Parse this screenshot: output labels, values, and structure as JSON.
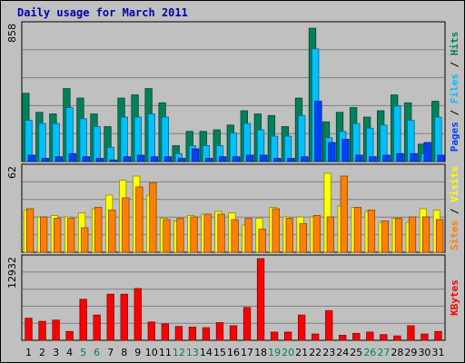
{
  "title": "Daily usage for March 2011",
  "chart_data": {
    "type": "bar",
    "title": "Daily usage for March 2011",
    "categories": [
      "1",
      "2",
      "3",
      "4",
      "5",
      "6",
      "7",
      "8",
      "9",
      "10",
      "11",
      "12",
      "13",
      "14",
      "15",
      "16",
      "17",
      "18",
      "19",
      "20",
      "21",
      "22",
      "23",
      "24",
      "25",
      "26",
      "27",
      "28",
      "29",
      "30",
      "31"
    ],
    "weekend_days": [
      "5",
      "6",
      "12",
      "13",
      "19",
      "20",
      "26",
      "27"
    ],
    "colors": {
      "hits": "#00805c",
      "files": "#00c0ff",
      "pages": "#0040ff",
      "visits": "#ffff00",
      "sites": "#ff8000",
      "kbytes": "#ff0000",
      "weekday_tick": "#000000",
      "weekend_tick": "#00805c"
    },
    "panels": [
      {
        "name": "hits-files-pages",
        "max_label": "858",
        "ylim": [
          0,
          858
        ],
        "legend": [
          "Pages",
          "Files",
          "Hits"
        ],
        "series": [
          {
            "name": "Hits",
            "values": [
              430,
              310,
              300,
              460,
              400,
              300,
              220,
              400,
              420,
              460,
              370,
              100,
              190,
              190,
              200,
              230,
              320,
              300,
              290,
              220,
              400,
              840,
              250,
              310,
              340,
              280,
              320,
              420,
              370,
              110,
              380
            ]
          },
          {
            "name": "Files",
            "values": [
              260,
              240,
              240,
              340,
              270,
              220,
              90,
              280,
              280,
              300,
              280,
              50,
              100,
              100,
              100,
              180,
              240,
              200,
              160,
              160,
              290,
              710,
              150,
              190,
              240,
              210,
              230,
              350,
              260,
              50,
              280
            ]
          },
          {
            "name": "Pages",
            "values": [
              40,
              20,
              30,
              50,
              30,
              20,
              10,
              30,
              40,
              30,
              30,
              20,
              80,
              20,
              30,
              30,
              40,
              40,
              20,
              20,
              30,
              380,
              120,
              140,
              40,
              30,
              40,
              50,
              50,
              120,
              40
            ]
          }
        ]
      },
      {
        "name": "visits-sites",
        "max_label": "62",
        "ylim": [
          0,
          62
        ],
        "legend": [
          "Sites",
          "Visits"
        ],
        "series": [
          {
            "name": "Visits",
            "values": [
              31,
              26,
              27,
              26,
              29,
              32,
              42,
              53,
              56,
              42,
              25,
              23,
              27,
              28,
              30,
              29,
              20,
              25,
              33,
              26,
              26,
              26,
              58,
              34,
              33,
              30,
              22,
              25,
              22,
              32,
              31
            ]
          },
          {
            "name": "Sites",
            "values": [
              32,
              26,
              25,
              25,
              18,
              33,
              31,
              40,
              48,
              51,
              24,
              25,
              26,
              28,
              28,
              24,
              25,
              17,
              32,
              25,
              21,
              27,
              26,
              56,
              33,
              31,
              23,
              25,
              26,
              26,
              24
            ]
          }
        ]
      },
      {
        "name": "kbytes",
        "max_label": "12932",
        "ylim": [
          0,
          12932
        ],
        "legend": [
          "KBytes"
        ],
        "series": [
          {
            "name": "KBytes",
            "values": [
              3500,
              3000,
              3200,
              1400,
              6500,
              4000,
              7300,
              7300,
              8200,
              2900,
              2600,
              2200,
              2100,
              2000,
              2800,
              2300,
              5200,
              12932,
              1300,
              1300,
              4000,
              1000,
              4700,
              800,
              1100,
              1300,
              900,
              700,
              2300,
              1000,
              1400
            ]
          }
        ]
      }
    ]
  }
}
